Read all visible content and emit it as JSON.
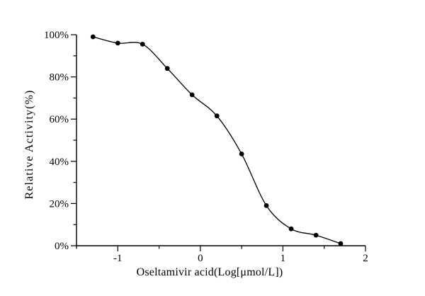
{
  "figure": {
    "background_color": "#ffffff",
    "foreground_color": "#000000"
  },
  "chart_data": {
    "type": "scatter",
    "title": "",
    "xlabel": "Oseltamivir acid(Log[μmol/L])",
    "ylabel": "Relative Activity(%)",
    "xlim": [
      -1.5,
      2
    ],
    "ylim": [
      0,
      100
    ],
    "grid": false,
    "legend": "none",
    "series": [
      {
        "x": [
          -1.3,
          -1.0,
          -0.7,
          -0.4,
          -0.1,
          0.2,
          0.5,
          0.8,
          1.1,
          1.4,
          1.7
        ],
        "y": [
          99,
          96,
          95.5,
          84,
          71.5,
          61.5,
          43.5,
          19,
          8,
          5,
          1
        ],
        "marker": "filled-circle",
        "marker_color": "#000000",
        "marker_radius": 3.4,
        "line_style": "smooth-fit-curve",
        "line_color": "#000000",
        "line_width": 1.3
      }
    ],
    "x_ticks": {
      "major": [
        -1,
        0,
        1,
        2
      ],
      "labels": [
        "-1",
        "0",
        "1",
        "2"
      ],
      "minor": [
        -1.5,
        -0.5,
        0.5,
        1.5
      ]
    },
    "y_ticks": {
      "major": [
        0,
        20,
        40,
        60,
        80,
        100
      ],
      "labels": [
        "0%",
        "20%",
        "40%",
        "60%",
        "80%",
        "100%"
      ],
      "minor": [
        10,
        30,
        50,
        70,
        90
      ]
    }
  }
}
